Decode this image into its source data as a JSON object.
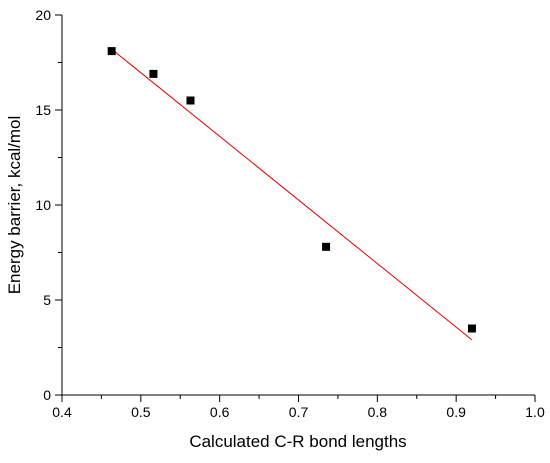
{
  "chart_data": {
    "type": "scatter",
    "title": "",
    "xlabel": "Calculated C-R bond lengths",
    "ylabel": "Energy barrier, kcal/mol",
    "xlim": [
      0.4,
      1.0
    ],
    "ylim": [
      0,
      20
    ],
    "xticks": [
      "0.4",
      "0.5",
      "0.6",
      "0.7",
      "0.8",
      "0.9",
      "1.0"
    ],
    "yticks": [
      "0",
      "5",
      "10",
      "15",
      "20"
    ],
    "grid": false,
    "legend": "none",
    "series": [
      {
        "type": "scatter",
        "marker": "square",
        "color": "#000000",
        "points": [
          {
            "x": 0.463,
            "y": 18.1
          },
          {
            "x": 0.516,
            "y": 16.9
          },
          {
            "x": 0.563,
            "y": 15.5
          },
          {
            "x": 0.735,
            "y": 7.8
          },
          {
            "x": 0.92,
            "y": 3.5
          }
        ]
      },
      {
        "type": "line",
        "role": "linear-fit",
        "color": "#e00000",
        "points": [
          {
            "x": 0.463,
            "y": 18.2
          },
          {
            "x": 0.92,
            "y": 2.9
          }
        ]
      }
    ]
  }
}
